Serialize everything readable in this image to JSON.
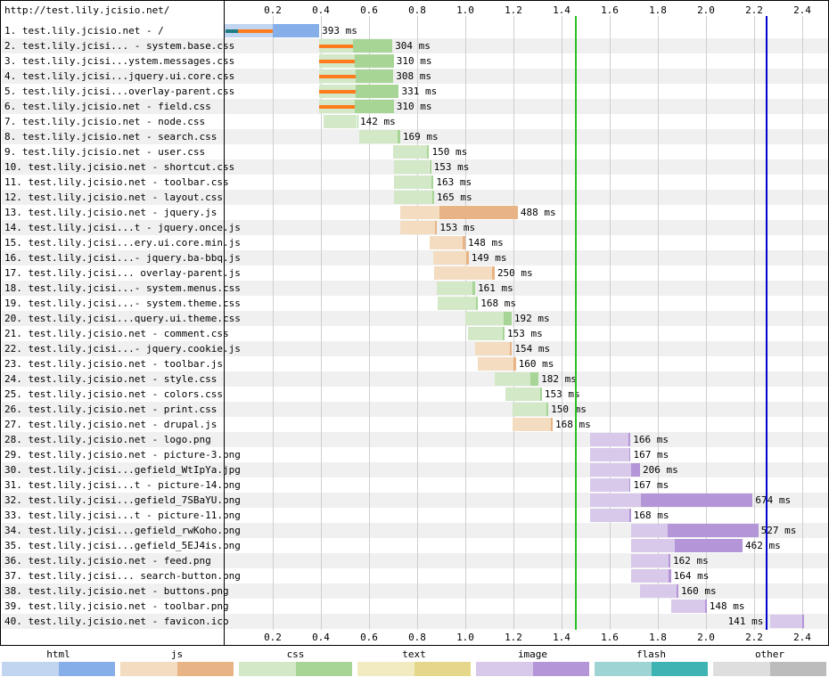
{
  "page_url": "http://test.lily.jcisio.net/",
  "axis": {
    "ticks": [
      "0.2",
      "0.4",
      "0.6",
      "0.8",
      "1.0",
      "1.2",
      "1.4",
      "1.6",
      "1.8",
      "2.0",
      "2.2",
      "2.4"
    ],
    "max": 2.5
  },
  "markers": [
    {
      "name": "green-marker-line",
      "t": 1.46,
      "color": "#28c028"
    },
    {
      "name": "blue-marker-line",
      "t": 2.25,
      "color": "#0000cc"
    }
  ],
  "legend": [
    {
      "label": "html",
      "light": "#c1d5f1",
      "dark": "#86aee9"
    },
    {
      "label": "js",
      "light": "#f3dcc0",
      "dark": "#e8b485"
    },
    {
      "label": "css",
      "light": "#d2e8c6",
      "dark": "#a7d595"
    },
    {
      "label": "text",
      "light": "#f2eac0",
      "dark": "#e4d78a"
    },
    {
      "label": "image",
      "light": "#d8c8e9",
      "dark": "#b495d7"
    },
    {
      "label": "flash",
      "light": "#9fd4d4",
      "dark": "#3eb3b3"
    },
    {
      "label": "other",
      "light": "#dedede",
      "dark": "#bcbcbc"
    }
  ],
  "requests": [
    {
      "label": "1. test.lily.jcisio.net - /",
      "duration": "393 ms",
      "type": "html",
      "start": 0.0,
      "end": 0.393,
      "ttfb": 0.2,
      "pre": [
        0.005,
        0.055,
        0.2
      ]
    },
    {
      "label": "2. test.lily.jcisi... - system.base.css",
      "duration": "304 ms",
      "type": "css",
      "start": 0.393,
      "end": 0.697,
      "ttfb": 0.535,
      "pre": [
        null,
        0.393,
        0.535
      ]
    },
    {
      "label": "3. test.lily.jcisi...ystem.messages.css",
      "duration": "310 ms",
      "type": "css",
      "start": 0.393,
      "end": 0.703,
      "ttfb": 0.54,
      "pre": [
        null,
        0.393,
        0.54
      ]
    },
    {
      "label": "4. test.lily.jcisi...jquery.ui.core.css",
      "duration": "308 ms",
      "type": "css",
      "start": 0.393,
      "end": 0.701,
      "ttfb": 0.545,
      "pre": [
        null,
        0.393,
        0.545
      ]
    },
    {
      "label": "5. test.lily.jcisi...overlay-parent.css",
      "duration": "331 ms",
      "type": "css",
      "start": 0.393,
      "end": 0.724,
      "ttfb": 0.545,
      "pre": [
        null,
        0.393,
        0.545
      ]
    },
    {
      "label": "6. test.lily.jcisio.net - field.css",
      "duration": "310 ms",
      "type": "css",
      "start": 0.393,
      "end": 0.703,
      "ttfb": 0.54,
      "pre": [
        null,
        0.393,
        0.54
      ]
    },
    {
      "label": "7. test.lily.jcisio.net - node.css",
      "duration": "142 ms",
      "type": "css",
      "start": 0.41,
      "end": 0.552,
      "ttfb": 0.55
    },
    {
      "label": "8. test.lily.jcisio.net - search.css",
      "duration": "169 ms",
      "type": "css",
      "start": 0.56,
      "end": 0.729,
      "ttfb": 0.72
    },
    {
      "label": "9. test.lily.jcisio.net - user.css",
      "duration": "150 ms",
      "type": "css",
      "start": 0.7,
      "end": 0.85,
      "ttfb": 0.84
    },
    {
      "label": "10. test.lily.jcisio.net - shortcut.css",
      "duration": "153 ms",
      "type": "css",
      "start": 0.705,
      "end": 0.858,
      "ttfb": 0.85
    },
    {
      "label": "11. test.lily.jcisio.net - toolbar.css",
      "duration": "163 ms",
      "type": "css",
      "start": 0.705,
      "end": 0.868,
      "ttfb": 0.86
    },
    {
      "label": "12. test.lily.jcisio.net - layout.css",
      "duration": "165 ms",
      "type": "css",
      "start": 0.705,
      "end": 0.87,
      "ttfb": 0.862
    },
    {
      "label": "13. test.lily.jcisio.net - jquery.js",
      "duration": "488 ms",
      "type": "js",
      "start": 0.73,
      "end": 1.218,
      "ttfb": 0.893
    },
    {
      "label": "14. test.lily.jcisi...t - jquery.once.js",
      "duration": "153 ms",
      "type": "js",
      "start": 0.73,
      "end": 0.883,
      "ttfb": 0.875
    },
    {
      "label": "15. test.lily.jcisi...ery.ui.core.min.js",
      "duration": "148 ms",
      "type": "js",
      "start": 0.852,
      "end": 1.0,
      "ttfb": 0.99
    },
    {
      "label": "16. test.lily.jcisi...- jquery.ba-bbq.js",
      "duration": "149 ms",
      "type": "js",
      "start": 0.865,
      "end": 1.014,
      "ttfb": 1.005
    },
    {
      "label": "17. test.lily.jcisi... overlay-parent.js",
      "duration": "250 ms",
      "type": "js",
      "start": 0.872,
      "end": 1.122,
      "ttfb": 1.11
    },
    {
      "label": "18. test.lily.jcisi...- system.menus.css",
      "duration": "161 ms",
      "type": "css",
      "start": 0.88,
      "end": 1.041,
      "ttfb": 1.03
    },
    {
      "label": "19. test.lily.jcisi...- system.theme.css",
      "duration": "168 ms",
      "type": "css",
      "start": 0.885,
      "end": 1.053,
      "ttfb": 1.045
    },
    {
      "label": "20. test.lily.jcisi...query.ui.theme.css",
      "duration": "192 ms",
      "type": "css",
      "start": 1.0,
      "end": 1.192,
      "ttfb": 1.16
    },
    {
      "label": "21. test.lily.jcisio.net - comment.css",
      "duration": "153 ms",
      "type": "css",
      "start": 1.01,
      "end": 1.163,
      "ttfb": 1.155
    },
    {
      "label": "22. test.lily.jcisi...- jquery.cookie.js",
      "duration": "154 ms",
      "type": "js",
      "start": 1.04,
      "end": 1.194,
      "ttfb": 1.185
    },
    {
      "label": "23. test.lily.jcisio.net - toolbar.js",
      "duration": "160 ms",
      "type": "js",
      "start": 1.05,
      "end": 1.21,
      "ttfb": 1.2
    },
    {
      "label": "24. test.lily.jcisio.net - style.css",
      "duration": "182 ms",
      "type": "css",
      "start": 1.122,
      "end": 1.304,
      "ttfb": 1.27
    },
    {
      "label": "25. test.lily.jcisio.net - colors.css",
      "duration": "153 ms",
      "type": "css",
      "start": 1.165,
      "end": 1.318,
      "ttfb": 1.31
    },
    {
      "label": "26. test.lily.jcisio.net - print.css",
      "duration": "150 ms",
      "type": "css",
      "start": 1.195,
      "end": 1.345,
      "ttfb": 1.338
    },
    {
      "label": "27. test.lily.jcisio.net - drupal.js",
      "duration": "168 ms",
      "type": "js",
      "start": 1.195,
      "end": 1.363,
      "ttfb": 1.355
    },
    {
      "label": "28. test.lily.jcisio.net - logo.png",
      "duration": "166 ms",
      "type": "image",
      "start": 1.52,
      "end": 1.686,
      "ttfb": 1.678
    },
    {
      "label": "29. test.lily.jcisio.net - picture-3.png",
      "duration": "167 ms",
      "type": "image",
      "start": 1.52,
      "end": 1.687,
      "ttfb": 1.68
    },
    {
      "label": "30. test.lily.jcisi...gefield_WtIpYa.jpg",
      "duration": "206 ms",
      "type": "image",
      "start": 1.52,
      "end": 1.726,
      "ttfb": 1.69
    },
    {
      "label": "31. test.lily.jcisi...t - picture-14.png",
      "duration": "167 ms",
      "type": "image",
      "start": 1.52,
      "end": 1.687,
      "ttfb": 1.68
    },
    {
      "label": "32. test.lily.jcisi...gefield_7SBaYU.png",
      "duration": "674 ms",
      "type": "image",
      "start": 1.52,
      "end": 2.194,
      "ttfb": 1.73
    },
    {
      "label": "33. test.lily.jcisi...t - picture-11.png",
      "duration": "168 ms",
      "type": "image",
      "start": 1.52,
      "end": 1.688,
      "ttfb": 1.68
    },
    {
      "label": "34. test.lily.jcisi...gefield_rwKoho.png",
      "duration": "527 ms",
      "type": "image",
      "start": 1.69,
      "end": 2.217,
      "ttfb": 1.84
    },
    {
      "label": "35. test.lily.jcisi...gefield_5EJ4is.png",
      "duration": "462 ms",
      "type": "image",
      "start": 1.69,
      "end": 2.152,
      "ttfb": 1.87
    },
    {
      "label": "36. test.lily.jcisio.net - feed.png",
      "duration": "162 ms",
      "type": "image",
      "start": 1.69,
      "end": 1.852,
      "ttfb": 1.845
    },
    {
      "label": "37. test.lily.jcisi... search-button.png",
      "duration": "164 ms",
      "type": "image",
      "start": 1.69,
      "end": 1.854,
      "ttfb": 1.846
    },
    {
      "label": "38. test.lily.jcisio.net - buttons.png",
      "duration": "160 ms",
      "type": "image",
      "start": 1.725,
      "end": 1.885,
      "ttfb": 1.878
    },
    {
      "label": "39. test.lily.jcisio.net - toolbar.png",
      "duration": "148 ms",
      "type": "image",
      "start": 1.855,
      "end": 2.003,
      "ttfb": 1.995
    },
    {
      "label": "40. test.lily.jcisio.net - favicon.ico",
      "duration": "141 ms",
      "type": "image",
      "start": 2.268,
      "end": 2.409,
      "ttfb": 2.4,
      "label_left": true
    }
  ]
}
